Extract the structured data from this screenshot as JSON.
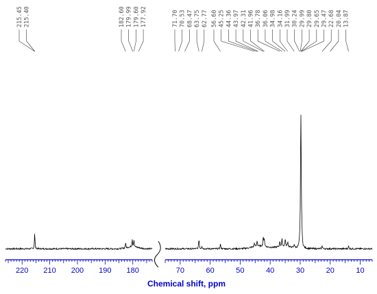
{
  "chart_data": {
    "type": "line",
    "title": "",
    "xlabel": "Chemical shift, ppm",
    "ylabel": "",
    "x_axis": {
      "reversed": true,
      "broken": true,
      "segments": [
        {
          "xlim": [
            226,
            173
          ],
          "ticks": [
            220,
            210,
            200,
            190,
            180
          ]
        },
        {
          "xlim": [
            75,
            6
          ],
          "ticks": [
            70,
            60,
            50,
            40,
            30,
            20,
            10
          ]
        }
      ]
    },
    "grid": false,
    "colors": {
      "spectrum": "#000000",
      "axis": "#0000cc",
      "tick_labels": "#0000cc",
      "peak_labels": "#555555"
    },
    "peak_labels": [
      {
        "group": 0,
        "labels": [
          "215.45",
          "215.40"
        ]
      },
      {
        "group": 1,
        "labels": [
          "182.60",
          "179.99",
          "179.60",
          "177.92"
        ]
      },
      {
        "group": 2,
        "labels": [
          "71.70",
          "70.53",
          "68.47",
          "63.75",
          "62.77"
        ]
      },
      {
        "group": 3,
        "labels": [
          "56.60",
          "45.25",
          "44.36",
          "43.97",
          "42.31",
          "41.96",
          "36.78",
          "36.06",
          "34.98",
          "34.16",
          "31.99",
          "30.24",
          "29.99",
          "29.80",
          "29.65",
          "29.47",
          "22.68",
          "20.04",
          "13.87"
        ]
      }
    ],
    "peaks": [
      {
        "ppm": 215.45,
        "intensity": 0.12
      },
      {
        "ppm": 182.6,
        "intensity": 0.04
      },
      {
        "ppm": 180.2,
        "intensity": 0.06
      },
      {
        "ppm": 179.6,
        "intensity": 0.055
      },
      {
        "ppm": 63.75,
        "intensity": 0.075
      },
      {
        "ppm": 62.77,
        "intensity": 0.02
      },
      {
        "ppm": 56.6,
        "intensity": 0.035
      },
      {
        "ppm": 45.25,
        "intensity": 0.03
      },
      {
        "ppm": 44.36,
        "intensity": 0.045
      },
      {
        "ppm": 42.31,
        "intensity": 0.07
      },
      {
        "ppm": 41.96,
        "intensity": 0.06
      },
      {
        "ppm": 36.78,
        "intensity": 0.04
      },
      {
        "ppm": 36.06,
        "intensity": 0.055
      },
      {
        "ppm": 34.98,
        "intensity": 0.06
      },
      {
        "ppm": 34.16,
        "intensity": 0.04
      },
      {
        "ppm": 31.99,
        "intensity": 0.03
      },
      {
        "ppm": 30.24,
        "intensity": 0.02
      },
      {
        "ppm": 29.8,
        "intensity": 1.0
      },
      {
        "ppm": 29.65,
        "intensity": 0.2
      },
      {
        "ppm": 29.47,
        "intensity": 0.08
      },
      {
        "ppm": 22.68,
        "intensity": 0.025
      },
      {
        "ppm": 13.87,
        "intensity": 0.02
      }
    ],
    "broad_humps": [
      {
        "ppm": 180.0,
        "width": 2.0,
        "intensity": 0.015
      },
      {
        "ppm": 43.5,
        "width": 2.5,
        "intensity": 0.02
      },
      {
        "ppm": 35.5,
        "width": 2.5,
        "intensity": 0.018
      }
    ]
  }
}
